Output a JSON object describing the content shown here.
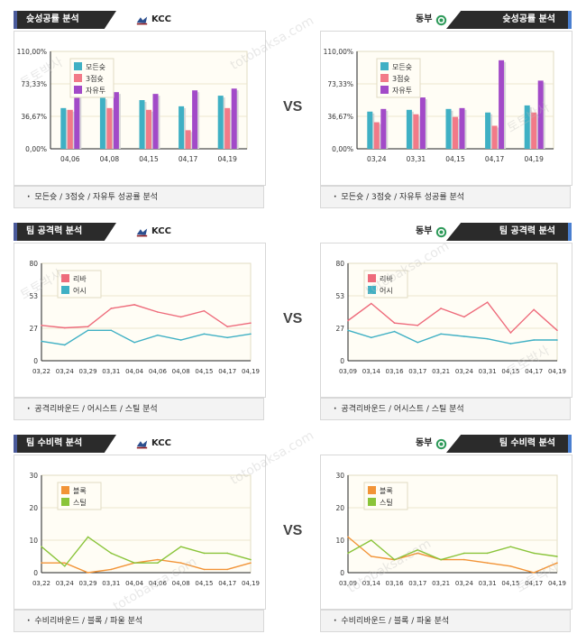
{
  "vs_label": "VS",
  "watermarks": [
    "토토박사",
    "totobaksa.com"
  ],
  "panels": [
    {
      "id": "shoot-left",
      "side": "left",
      "title": "슛성공률 분석",
      "team": "KCC",
      "team_icon": "kcc-logo-icon",
      "accent": "#4a5a9a",
      "footer": "모든슛 / 3점슛 / 자유투 성공률 분석",
      "chart_data": {
        "type": "bar",
        "categories": [
          "04,06",
          "04,08",
          "04,15",
          "04,17",
          "04,19"
        ],
        "yticks": [
          "110,00%",
          "73,33%",
          "36,67%",
          "0,00%"
        ],
        "ylim": [
          0,
          110
        ],
        "series": [
          {
            "name": "모든슛",
            "color": "#3fb0c4",
            "values": [
              46,
              58,
              55,
              48,
              60
            ]
          },
          {
            "name": "3점슛",
            "color": "#f27a88",
            "values": [
              44,
              46,
              44,
              21,
              46
            ]
          },
          {
            "name": "자유투",
            "color": "#a24ac8",
            "values": [
              60,
              64,
              62,
              66,
              68
            ]
          }
        ]
      }
    },
    {
      "id": "shoot-right",
      "side": "right",
      "title": "슛성공률 분석",
      "team": "동부",
      "team_icon": "dongbu-logo-icon",
      "accent": "#4a7fd0",
      "footer": "모든슛 / 3점슛 / 자유투 성공률 분석",
      "chart_data": {
        "type": "bar",
        "categories": [
          "03,24",
          "03,31",
          "04,15",
          "04,17",
          "04,19"
        ],
        "yticks": [
          "110,00%",
          "73,33%",
          "36,67%",
          "0,00%"
        ],
        "ylim": [
          0,
          110
        ],
        "series": [
          {
            "name": "모든슛",
            "color": "#3fb0c4",
            "values": [
              42,
              44,
              45,
              41,
              49
            ]
          },
          {
            "name": "3점슛",
            "color": "#f27a88",
            "values": [
              30,
              39,
              36,
              26,
              41
            ]
          },
          {
            "name": "자유투",
            "color": "#a24ac8",
            "values": [
              45,
              58,
              46,
              100,
              77
            ]
          }
        ]
      }
    },
    {
      "id": "off-left",
      "side": "left",
      "title": "팀 공격력 분석",
      "team": "KCC",
      "team_icon": "kcc-logo-icon",
      "accent": "#4a5a9a",
      "footer": "공격리바운드 / 어시스트 / 스틸 분석",
      "chart_data": {
        "type": "line",
        "categories": [
          "03,22",
          "03,24",
          "03,29",
          "03,31",
          "04,04",
          "04,06",
          "04,08",
          "04,15",
          "04,17",
          "04,19"
        ],
        "yticks": [
          "80",
          "53",
          "27",
          "0"
        ],
        "ylim": [
          0,
          80
        ],
        "series": [
          {
            "name": "리바",
            "color": "#ee6b7b",
            "values": [
              29,
              27,
              28,
              43,
              46,
              40,
              36,
              41,
              28,
              31
            ]
          },
          {
            "name": "어시",
            "color": "#3fb0c4",
            "values": [
              16,
              13,
              25,
              25,
              15,
              21,
              17,
              22,
              19,
              22
            ]
          }
        ]
      }
    },
    {
      "id": "off-right",
      "side": "right",
      "title": "팀 공격력 분석",
      "team": "동부",
      "team_icon": "dongbu-logo-icon",
      "accent": "#4a7fd0",
      "footer": "공격리바운드 / 어시스트 / 스틸 분석",
      "chart_data": {
        "type": "line",
        "categories": [
          "03,09",
          "03,14",
          "03,16",
          "03,17",
          "03,21",
          "03,24",
          "03,31",
          "04,15",
          "04,17",
          "04,19"
        ],
        "yticks": [
          "80",
          "53",
          "27",
          "0"
        ],
        "ylim": [
          0,
          80
        ],
        "series": [
          {
            "name": "리바",
            "color": "#ee6b7b",
            "values": [
              33,
              47,
              31,
              29,
              43,
              36,
              48,
              23,
              42,
              25
            ]
          },
          {
            "name": "어시",
            "color": "#3fb0c4",
            "values": [
              25,
              19,
              24,
              15,
              22,
              20,
              18,
              14,
              17,
              17
            ]
          }
        ]
      }
    },
    {
      "id": "def-left",
      "side": "left",
      "title": "팀 수비력 분석",
      "team": "KCC",
      "team_icon": "kcc-logo-icon",
      "accent": "#4a5a9a",
      "footer": "수비리바운드 / 블록 / 파울 분석",
      "chart_data": {
        "type": "line",
        "categories": [
          "03,22",
          "03,24",
          "03,29",
          "03,31",
          "04,04",
          "04,06",
          "04,08",
          "04,15",
          "04,17",
          "04,19"
        ],
        "yticks": [
          "30",
          "20",
          "10",
          "0"
        ],
        "ylim": [
          0,
          30
        ],
        "series": [
          {
            "name": "블록",
            "color": "#f29437",
            "values": [
              3,
              3,
              0,
              1,
              3,
              4,
              3,
              1,
              1,
              3
            ]
          },
          {
            "name": "스틸",
            "color": "#8ac43a",
            "values": [
              8,
              2,
              11,
              6,
              3,
              3,
              8,
              6,
              6,
              4
            ]
          }
        ]
      }
    },
    {
      "id": "def-right",
      "side": "right",
      "title": "팀 수비력 분석",
      "team": "동부",
      "team_icon": "dongbu-logo-icon",
      "accent": "#4a7fd0",
      "footer": "수비리바운드 / 블록 / 파울 분석",
      "chart_data": {
        "type": "line",
        "categories": [
          "03,09",
          "03,14",
          "03,16",
          "03,17",
          "03,21",
          "03,24",
          "03,31",
          "04,15",
          "04,17",
          "04,19"
        ],
        "yticks": [
          "30",
          "20",
          "10",
          "0"
        ],
        "ylim": [
          0,
          30
        ],
        "series": [
          {
            "name": "블록",
            "color": "#f29437",
            "values": [
              11,
              5,
              4,
              6,
              4,
              4,
              3,
              2,
              0,
              3
            ]
          },
          {
            "name": "스틸",
            "color": "#8ac43a",
            "values": [
              6,
              10,
              4,
              7,
              4,
              6,
              6,
              8,
              6,
              5
            ]
          }
        ]
      }
    }
  ]
}
